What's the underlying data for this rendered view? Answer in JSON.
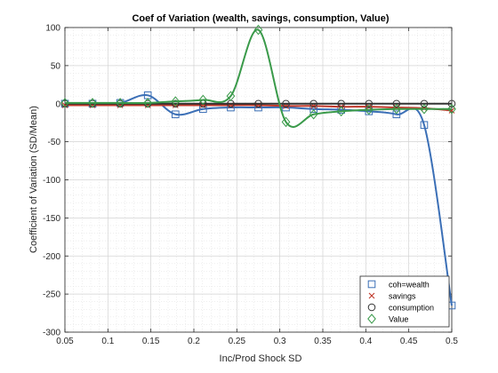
{
  "chart_data": {
    "type": "line",
    "title": "Coef of Variation (wealth, savings, consumption, Value)",
    "xlabel": "Inc/Prod Shock SD",
    "ylabel": "Coefficient of Variation (SD/Mean)",
    "xlim": [
      0.05,
      0.5
    ],
    "ylim": [
      -300,
      100
    ],
    "xticks": [
      0.05,
      0.1,
      0.15,
      0.2,
      0.25,
      0.3,
      0.35,
      0.4,
      0.45,
      0.5
    ],
    "xtick_labels": [
      "0.05",
      "0.1",
      "0.15",
      "0.2",
      "0.25",
      "0.3",
      "0.35",
      "0.4",
      "0.45",
      "0.5"
    ],
    "yticks": [
      -300,
      -250,
      -200,
      -150,
      -100,
      -50,
      0,
      50,
      100
    ],
    "ytick_labels": [
      "-300",
      "-250",
      "-200",
      "-150",
      "-100",
      "-50",
      "0",
      "50",
      "100"
    ],
    "grid": true,
    "minor_grid": true,
    "legend_position": "bottom-right",
    "x": [
      0.05,
      0.0821,
      0.1143,
      0.1464,
      0.1786,
      0.2107,
      0.2429,
      0.275,
      0.3071,
      0.3393,
      0.3714,
      0.4036,
      0.4357,
      0.4679,
      0.5
    ],
    "series": [
      {
        "name": "coh=wealth",
        "color": "#3b6fb6",
        "marker": "square",
        "values": [
          0,
          0,
          1,
          11,
          -14,
          -7,
          -5,
          -5,
          -5,
          -7,
          -8,
          -10,
          -14,
          -28,
          -265
        ]
      },
      {
        "name": "savings",
        "color": "#c0392b",
        "marker": "x",
        "values": [
          -2,
          -2,
          -2,
          -2,
          -2,
          -2,
          -2,
          -2,
          -3,
          -3,
          -4,
          -4,
          -5,
          -6,
          -9
        ]
      },
      {
        "name": "consumption",
        "color": "#333333",
        "marker": "circle",
        "values": [
          0,
          0,
          0,
          0,
          0,
          0,
          0,
          0,
          0,
          0,
          0,
          0,
          0,
          0,
          0
        ]
      },
      {
        "name": "Value",
        "color": "#3a9a4a",
        "marker": "diamond",
        "values": [
          1,
          1,
          1,
          1,
          3,
          5,
          10,
          97,
          -24,
          -14,
          -10,
          -8,
          -7,
          -7,
          -7
        ]
      }
    ]
  }
}
